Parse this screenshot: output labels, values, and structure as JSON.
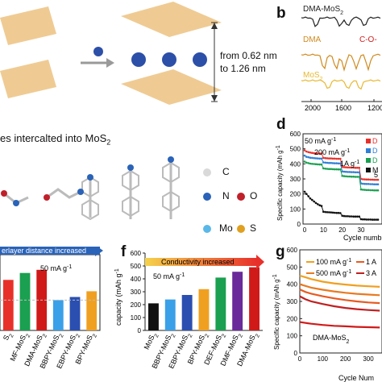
{
  "figure": {
    "panel_letters": {
      "b": "b",
      "d": "d",
      "f": "f",
      "g": "g"
    },
    "panel_a": {
      "distance_text_1": "from 0.62 nm",
      "distance_text_2": "to 1.26 nm"
    },
    "panel_c": {
      "caption_prefix": "es intercalted into MoS",
      "caption_sub": "2",
      "legend": [
        {
          "symbol": "C",
          "color": "#d9d9d9"
        },
        {
          "symbol": "N",
          "color": "#2a63b8"
        },
        {
          "symbol": "O",
          "color": "#c0202a"
        },
        {
          "symbol": "Mo",
          "color": "#5ab8e8"
        },
        {
          "symbol": "S",
          "color": "#e0a020"
        }
      ]
    },
    "colors": {
      "mos2_atom": "#e39b28",
      "mo_atom": "#6d8fb8",
      "intercalant": "#2c4fa8",
      "arrow": "#9a9a9a"
    }
  },
  "chart_data": [
    {
      "panel": "b",
      "type": "line",
      "xlabel": "Wavenumbe",
      "x_ticks": [
        "2000",
        "1600",
        "1200"
      ],
      "series": [
        {
          "name": "DMA-MoS",
          "sub": "2",
          "color": "#222222"
        },
        {
          "name": "DMA",
          "color": "#d08a1e"
        },
        {
          "name": "MoS",
          "sub": "2",
          "color": "#e8b830"
        }
      ],
      "annotation": "C-O-",
      "annotation_color": "#d02020"
    },
    {
      "panel": "d",
      "type": "scatter",
      "ylabel": "Specific capacity (mAh g",
      "ylabel_sup": "-1",
      "xlabel": "Cycle numb",
      "ylim": [
        0,
        600
      ],
      "y_ticks": [
        "0",
        "100",
        "200",
        "300",
        "400",
        "500",
        "600"
      ],
      "x_ticks": [
        "0",
        "10",
        "20",
        "30"
      ],
      "rate_labels": [
        "50 mA g",
        "200 mA g",
        "1A g",
        "5"
      ],
      "rate_label_sup": "-1",
      "legend_prefixes": [
        "D",
        "D",
        "D",
        "M"
      ],
      "legend_colors": [
        "#e8302a",
        "#2f7fd6",
        "#1aa050",
        "#111111"
      ],
      "series": [
        {
          "color": "#e8302a",
          "values": [
            490,
            482,
            478,
            475,
            473,
            471,
            470,
            469,
            468,
            468,
            440,
            438,
            437,
            436,
            436,
            435,
            435,
            434,
            434,
            434,
            380,
            378,
            377,
            376,
            376,
            375,
            375,
            374,
            374,
            374,
            300,
            298,
            297,
            296,
            296,
            295,
            295,
            294,
            294,
            294
          ]
        },
        {
          "color": "#2f7fd6",
          "values": [
            455,
            447,
            444,
            441,
            440,
            438,
            437,
            436,
            435,
            435,
            410,
            408,
            407,
            406,
            406,
            405,
            404,
            404,
            403,
            403,
            350,
            348,
            347,
            346,
            346,
            345,
            345,
            344,
            344,
            344,
            270,
            268,
            267,
            266,
            266,
            265,
            265,
            264,
            264,
            264
          ]
        },
        {
          "color": "#1aa050",
          "values": [
            415,
            408,
            405,
            402,
            400,
            399,
            398,
            397,
            396,
            396,
            370,
            368,
            367,
            366,
            366,
            365,
            364,
            364,
            363,
            363,
            320,
            318,
            317,
            316,
            316,
            315,
            315,
            314,
            314,
            314,
            230,
            228,
            227,
            226,
            226,
            225,
            225,
            224,
            224,
            224
          ]
        },
        {
          "color": "#111111",
          "values": [
            215,
            200,
            185,
            170,
            160,
            150,
            140,
            132,
            125,
            120,
            82,
            80,
            79,
            78,
            77,
            76,
            75,
            74,
            74,
            73,
            55,
            53,
            52,
            52,
            51,
            51,
            50,
            50,
            50,
            50,
            32,
            31,
            31,
            30,
            30,
            30,
            29,
            29,
            29,
            29
          ]
        }
      ]
    },
    {
      "panel": "e",
      "type": "bar",
      "title": "erlayer distance increased",
      "rate": "50 mA g",
      "rate_sup": "-1",
      "categories": [
        "S2",
        "MF-MoS2",
        "DMA-MoS2",
        "BBPY-MoS2",
        "EBPY-MoS2",
        "BPY-MoS2"
      ],
      "visible_category_text": [
        "S",
        "MF-MoS",
        "DMA-MoS",
        "BBPY-MoS",
        "EBPY-MoS",
        "BPY-MoS"
      ],
      "category_sub": "2",
      "values": [
        400,
        455,
        480,
        240,
        265,
        310
      ],
      "colors": [
        "#e8302a",
        "#1aa050",
        "#d01a1a",
        "#3aa0e8",
        "#2a4fb0",
        "#f0a020"
      ],
      "ylim": [
        0,
        600
      ]
    },
    {
      "panel": "f",
      "type": "bar",
      "title": "Conductivity increased",
      "rate": "50 mA g",
      "rate_sup": "-1",
      "ylabel": "capacity (mAh g",
      "ylabel_sup": "-1",
      "ylim": [
        0,
        600
      ],
      "y_ticks": [
        "0",
        "100",
        "200",
        "300",
        "400",
        "500",
        "600"
      ],
      "categories": [
        "MoS2",
        "BBPY-MoS2",
        "EBPY-MoS2",
        "BPY-MoS2",
        "DEF-MoS2",
        "DMF-MoS2",
        "DMA-MoS2"
      ],
      "visible_category_text": [
        "MoS",
        "BBPY-MoS",
        "EBPY-MoS",
        "BPY-MoS",
        "DEF-MoS",
        "DMF-MoS",
        "DMA-MoS"
      ],
      "category_sub": "2",
      "values": [
        210,
        240,
        275,
        320,
        410,
        455,
        490
      ],
      "colors": [
        "#111111",
        "#3aa0e8",
        "#2a4fb0",
        "#f0a020",
        "#1aa050",
        "#6a2a9a",
        "#d01a1a"
      ]
    },
    {
      "panel": "g",
      "type": "line",
      "ylabel": "Specific capacity (mAh g",
      "ylabel_sup": "-1",
      "xlabel": "Cycle Num",
      "ylim": [
        0,
        600
      ],
      "y_ticks": [
        "0",
        "100",
        "200",
        "300",
        "400",
        "500",
        "600"
      ],
      "x_ticks": [
        "0",
        "100",
        "200",
        "300"
      ],
      "annotation": "DMA-MoS",
      "annotation_sub": "2",
      "legend": [
        {
          "name": "100 mA g",
          "sup": "-1",
          "color": "#f0a020"
        },
        {
          "name": "500 mA g",
          "sup": "-1",
          "color": "#e87a20"
        },
        {
          "name": "1 A",
          "color": "#e85a20"
        },
        {
          "name": "3 A",
          "color": "#c02020"
        }
      ],
      "series": [
        {
          "color": "#f0a020",
          "x": [
            0,
            25,
            50,
            100,
            150,
            200,
            250,
            300,
            350
          ],
          "values": [
            450,
            440,
            430,
            415,
            405,
            398,
            392,
            388,
            385
          ]
        },
        {
          "color": "#e87a20",
          "x": [
            0,
            25,
            50,
            100,
            150,
            200,
            250,
            300,
            350
          ],
          "values": [
            400,
            390,
            380,
            368,
            358,
            350,
            344,
            340,
            336
          ]
        },
        {
          "color": "#e85a20",
          "x": [
            0,
            25,
            50,
            100,
            150,
            200,
            250,
            300,
            350
          ],
          "values": [
            370,
            355,
            345,
            330,
            318,
            308,
            300,
            294,
            290
          ]
        },
        {
          "color": "#c02020",
          "x": [
            0,
            25,
            50,
            100,
            150,
            200,
            250,
            300,
            350
          ],
          "values": [
            330,
            312,
            300,
            285,
            272,
            262,
            255,
            250,
            246
          ]
        },
        {
          "color": "#d01a1a",
          "x": [
            0,
            25,
            50,
            100,
            150,
            200,
            250,
            300,
            350
          ],
          "values": [
            180,
            175,
            170,
            163,
            158,
            155,
            152,
            150,
            148
          ]
        }
      ]
    }
  ]
}
